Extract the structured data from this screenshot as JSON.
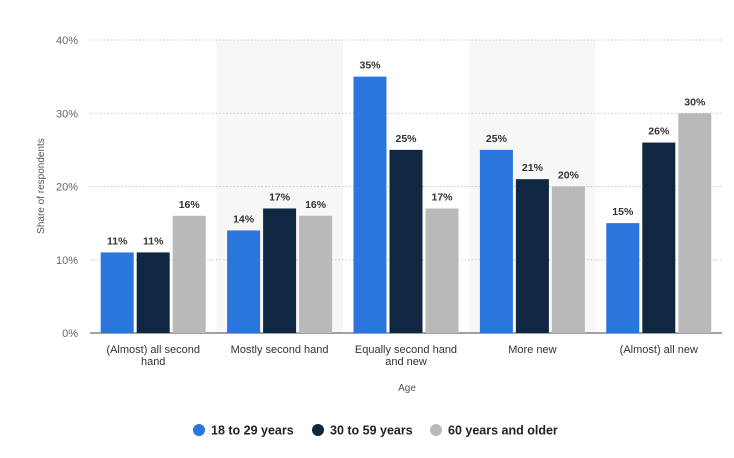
{
  "chart_data": {
    "type": "bar",
    "title": "",
    "xlabel": "Age",
    "ylabel": "Share of respondents",
    "ylim": [
      0,
      40
    ],
    "yticks": [
      0,
      10,
      20,
      30,
      40
    ],
    "ytick_labels": [
      "0%",
      "10%",
      "20%",
      "30%",
      "40%"
    ],
    "value_suffix": "%",
    "grid": true,
    "legend_position": "bottom",
    "categories": [
      [
        "(Almost) all second",
        "hand"
      ],
      [
        "Mostly second hand"
      ],
      [
        "Equally second hand",
        "and new"
      ],
      [
        "More new"
      ],
      [
        "(Almost) all new"
      ]
    ],
    "series": [
      {
        "name": "18 to 29 years",
        "color": "#2a76dd",
        "values": [
          11,
          14,
          35,
          25,
          15
        ]
      },
      {
        "name": "30 to 59 years",
        "color": "#0f2741",
        "values": [
          11,
          17,
          25,
          21,
          26
        ]
      },
      {
        "name": "60 years and older",
        "color": "#b9b9b9",
        "values": [
          16,
          16,
          17,
          20,
          30
        ]
      }
    ]
  }
}
